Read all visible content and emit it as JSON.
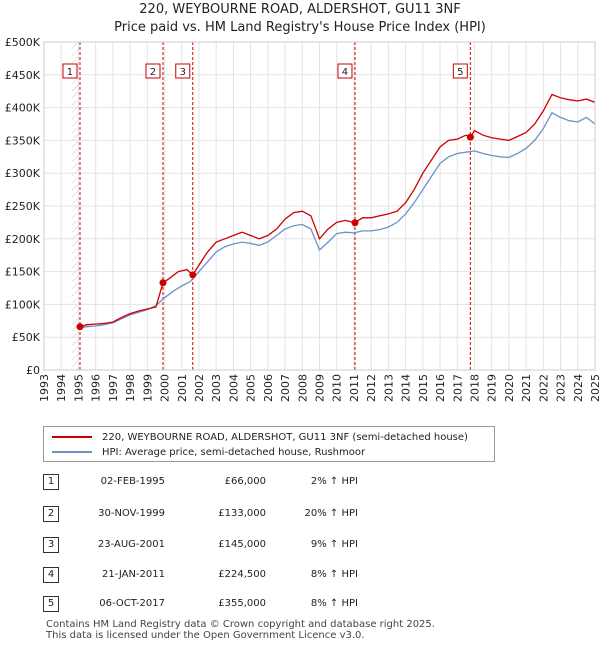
{
  "title_line1": "220, WEYBOURNE ROAD, ALDERSHOT, GU11 3NF",
  "title_line2": "Price paid vs. HM Land Registry's House Price Index (HPI)",
  "colors": {
    "property": "#cc0000",
    "hpi": "#6a93c8",
    "marker": "#cc0000"
  },
  "chart_data": {
    "type": "line",
    "title": "Price paid vs. HM Land Registry's House Price Index (HPI)",
    "xlabel": "",
    "ylabel": "",
    "xlim": [
      1993.0,
      2025.0
    ],
    "ylim": [
      0,
      500000
    ],
    "x_ticks": [
      "1993",
      "1994",
      "1995",
      "1996",
      "1997",
      "1998",
      "1999",
      "2000",
      "2001",
      "2002",
      "2003",
      "2004",
      "2005",
      "2006",
      "2007",
      "2008",
      "2009",
      "2010",
      "2011",
      "2012",
      "2013",
      "2014",
      "2015",
      "2016",
      "2017",
      "2018",
      "2019",
      "2020",
      "2021",
      "2022",
      "2023",
      "2024",
      "2025"
    ],
    "y_ticks": [
      {
        "value": 0,
        "label": "£0"
      },
      {
        "value": 50000,
        "label": "£50K"
      },
      {
        "value": 100000,
        "label": "£100K"
      },
      {
        "value": 150000,
        "label": "£150K"
      },
      {
        "value": 200000,
        "label": "£200K"
      },
      {
        "value": 250000,
        "label": "£250K"
      },
      {
        "value": 300000,
        "label": "£300K"
      },
      {
        "value": 350000,
        "label": "£350K"
      },
      {
        "value": 400000,
        "label": "£400K"
      },
      {
        "value": 450000,
        "label": "£450K"
      },
      {
        "value": 500000,
        "label": "£500K"
      }
    ],
    "grid": true,
    "series": [
      {
        "name": "220, WEYBOURNE ROAD, ALDERSHOT, GU11 3NF (semi-detached house)",
        "points": [
          [
            1995.09,
            66000
          ],
          [
            1995.5,
            69000
          ],
          [
            1996.0,
            70000
          ],
          [
            1996.5,
            71000
          ],
          [
            1997.0,
            73000
          ],
          [
            1997.5,
            80000
          ],
          [
            1998.0,
            86000
          ],
          [
            1998.5,
            90000
          ],
          [
            1999.0,
            93000
          ],
          [
            1999.5,
            96000
          ],
          [
            1999.91,
            133000
          ],
          [
            2000.3,
            140000
          ],
          [
            2000.8,
            150000
          ],
          [
            2001.3,
            153000
          ],
          [
            2001.64,
            145000
          ],
          [
            2002.0,
            160000
          ],
          [
            2002.5,
            180000
          ],
          [
            2003.0,
            195000
          ],
          [
            2003.5,
            200000
          ],
          [
            2004.0,
            205000
          ],
          [
            2004.5,
            210000
          ],
          [
            2005.0,
            205000
          ],
          [
            2005.5,
            200000
          ],
          [
            2006.0,
            205000
          ],
          [
            2006.5,
            215000
          ],
          [
            2007.0,
            230000
          ],
          [
            2007.5,
            240000
          ],
          [
            2008.0,
            242000
          ],
          [
            2008.5,
            235000
          ],
          [
            2009.0,
            200000
          ],
          [
            2009.5,
            215000
          ],
          [
            2010.0,
            225000
          ],
          [
            2010.5,
            228000
          ],
          [
            2011.06,
            224500
          ],
          [
            2011.5,
            232000
          ],
          [
            2012.0,
            232000
          ],
          [
            2012.5,
            235000
          ],
          [
            2013.0,
            238000
          ],
          [
            2013.5,
            242000
          ],
          [
            2014.0,
            255000
          ],
          [
            2014.5,
            275000
          ],
          [
            2015.0,
            300000
          ],
          [
            2015.5,
            320000
          ],
          [
            2016.0,
            340000
          ],
          [
            2016.5,
            350000
          ],
          [
            2017.0,
            352000
          ],
          [
            2017.5,
            358000
          ],
          [
            2017.76,
            355000
          ],
          [
            2018.0,
            365000
          ],
          [
            2018.5,
            358000
          ],
          [
            2019.0,
            354000
          ],
          [
            2019.5,
            352000
          ],
          [
            2020.0,
            350000
          ],
          [
            2020.5,
            356000
          ],
          [
            2021.0,
            362000
          ],
          [
            2021.5,
            375000
          ],
          [
            2022.0,
            395000
          ],
          [
            2022.5,
            420000
          ],
          [
            2023.0,
            415000
          ],
          [
            2023.5,
            412000
          ],
          [
            2024.0,
            410000
          ],
          [
            2024.5,
            413000
          ],
          [
            2025.0,
            408000
          ]
        ]
      },
      {
        "name": "HPI: Average price, semi-detached house, Rushmoor",
        "points": [
          [
            1995.0,
            64000
          ],
          [
            1995.5,
            66000
          ],
          [
            1996.0,
            67000
          ],
          [
            1996.5,
            69000
          ],
          [
            1997.0,
            72000
          ],
          [
            1997.5,
            78000
          ],
          [
            1998.0,
            84000
          ],
          [
            1998.5,
            88000
          ],
          [
            1999.0,
            92000
          ],
          [
            1999.5,
            98000
          ],
          [
            2000.0,
            110000
          ],
          [
            2000.5,
            120000
          ],
          [
            2001.0,
            128000
          ],
          [
            2001.5,
            135000
          ],
          [
            2002.0,
            150000
          ],
          [
            2002.5,
            165000
          ],
          [
            2003.0,
            180000
          ],
          [
            2003.5,
            188000
          ],
          [
            2004.0,
            192000
          ],
          [
            2004.5,
            195000
          ],
          [
            2005.0,
            193000
          ],
          [
            2005.5,
            190000
          ],
          [
            2006.0,
            195000
          ],
          [
            2006.5,
            205000
          ],
          [
            2007.0,
            215000
          ],
          [
            2007.5,
            220000
          ],
          [
            2008.0,
            222000
          ],
          [
            2008.5,
            215000
          ],
          [
            2009.0,
            183000
          ],
          [
            2009.5,
            195000
          ],
          [
            2010.0,
            208000
          ],
          [
            2010.5,
            210000
          ],
          [
            2011.0,
            209000
          ],
          [
            2011.5,
            212000
          ],
          [
            2012.0,
            212000
          ],
          [
            2012.5,
            214000
          ],
          [
            2013.0,
            218000
          ],
          [
            2013.5,
            225000
          ],
          [
            2014.0,
            238000
          ],
          [
            2014.5,
            255000
          ],
          [
            2015.0,
            275000
          ],
          [
            2015.5,
            295000
          ],
          [
            2016.0,
            315000
          ],
          [
            2016.5,
            325000
          ],
          [
            2017.0,
            330000
          ],
          [
            2017.5,
            332000
          ],
          [
            2018.0,
            334000
          ],
          [
            2018.5,
            330000
          ],
          [
            2019.0,
            327000
          ],
          [
            2019.5,
            325000
          ],
          [
            2020.0,
            324000
          ],
          [
            2020.5,
            330000
          ],
          [
            2021.0,
            338000
          ],
          [
            2021.5,
            350000
          ],
          [
            2022.0,
            368000
          ],
          [
            2022.5,
            392000
          ],
          [
            2023.0,
            385000
          ],
          [
            2023.5,
            380000
          ],
          [
            2024.0,
            378000
          ],
          [
            2024.5,
            385000
          ],
          [
            2025.0,
            375000
          ]
        ]
      }
    ],
    "sales": [
      {
        "label": "1",
        "x": 1995.09,
        "price": 66000
      },
      {
        "label": "2",
        "x": 1999.91,
        "price": 133000
      },
      {
        "label": "3",
        "x": 2001.64,
        "price": 145000
      },
      {
        "label": "4",
        "x": 2011.06,
        "price": 224500
      },
      {
        "label": "5",
        "x": 2017.76,
        "price": 355000
      }
    ]
  },
  "legend": {
    "property": "220, WEYBOURNE ROAD, ALDERSHOT, GU11 3NF (semi-detached house)",
    "hpi": "HPI: Average price, semi-detached house, Rushmoor"
  },
  "transactions": [
    {
      "num": "1",
      "date": "02-FEB-1995",
      "price": "£66,000",
      "pct": "2% ↑ HPI"
    },
    {
      "num": "2",
      "date": "30-NOV-1999",
      "price": "£133,000",
      "pct": "20% ↑ HPI"
    },
    {
      "num": "3",
      "date": "23-AUG-2001",
      "price": "£145,000",
      "pct": "9% ↑ HPI"
    },
    {
      "num": "4",
      "date": "21-JAN-2011",
      "price": "£224,500",
      "pct": "8% ↑ HPI"
    },
    {
      "num": "5",
      "date": "06-OCT-2017",
      "price": "£355,000",
      "pct": "8% ↑ HPI"
    }
  ],
  "footer_line1": "Contains HM Land Registry data © Crown copyright and database right 2025.",
  "footer_line2": "This data is licensed under the Open Government Licence v3.0."
}
